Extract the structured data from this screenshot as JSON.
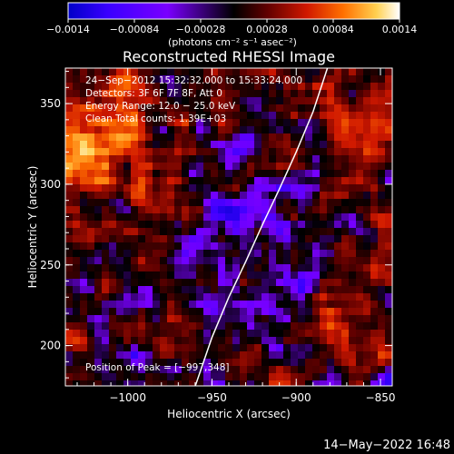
{
  "chart_data": {
    "type": "heatmap",
    "title": "Reconstructed RHESSI Image",
    "xlabel": "Heliocentric X (arcsec)",
    "ylabel": "Heliocentric Y (arcsec)",
    "xlim": [
      -1037,
      -843
    ],
    "ylim": [
      175,
      372
    ],
    "x_ticks": [
      {
        "value": -1000,
        "label": "−1000"
      },
      {
        "value": -950,
        "label": "−950"
      },
      {
        "value": -900,
        "label": "−900"
      },
      {
        "value": -850,
        "label": "−850"
      }
    ],
    "y_ticks": [
      {
        "value": 200,
        "label": "200"
      },
      {
        "value": 250,
        "label": "250"
      },
      {
        "value": 300,
        "label": "300"
      },
      {
        "value": 350,
        "label": "350"
      }
    ],
    "colorbar": {
      "range": [
        -0.0014,
        0.0014
      ],
      "ticks": [
        {
          "value": -0.0014,
          "label": "−0.0014"
        },
        {
          "value": -0.00084,
          "label": "−0.00084"
        },
        {
          "value": -0.00028,
          "label": "−0.00028"
        },
        {
          "value": 0.00028,
          "label": "0.00028"
        },
        {
          "value": 0.00084,
          "label": "0.00084"
        },
        {
          "value": 0.0014,
          "label": "0.0014"
        }
      ],
      "unit_label": "(photons cm⁻² s⁻¹ asec⁻²)",
      "colors": [
        "#0000c8",
        "#3a00ff",
        "#7a00ff",
        "#000000",
        "#600000",
        "#d01800",
        "#ff7000",
        "#ffd050",
        "#ffffff"
      ]
    },
    "annotations": [
      "24−Sep−2012 15:32:32.000 to 15:33:24.000",
      "Detectors: 3F 6F 7F 8F, Att 0",
      "Energy Range: 12.0 − 25.0 keV",
      "Clean   Total counts: 1.39E+03"
    ],
    "peak_label": "Position of Peak = [−997,348]",
    "limb_curve": {
      "x": [
        -959.9,
        -950,
        -940,
        -930,
        -920,
        -910,
        -900,
        -890,
        -881.5
      ],
      "y": [
        175,
        205,
        230,
        252,
        275,
        297,
        320,
        345,
        372
      ]
    },
    "grid": false
  },
  "footer": {
    "timestamp": "14−May−2022 16:48"
  }
}
